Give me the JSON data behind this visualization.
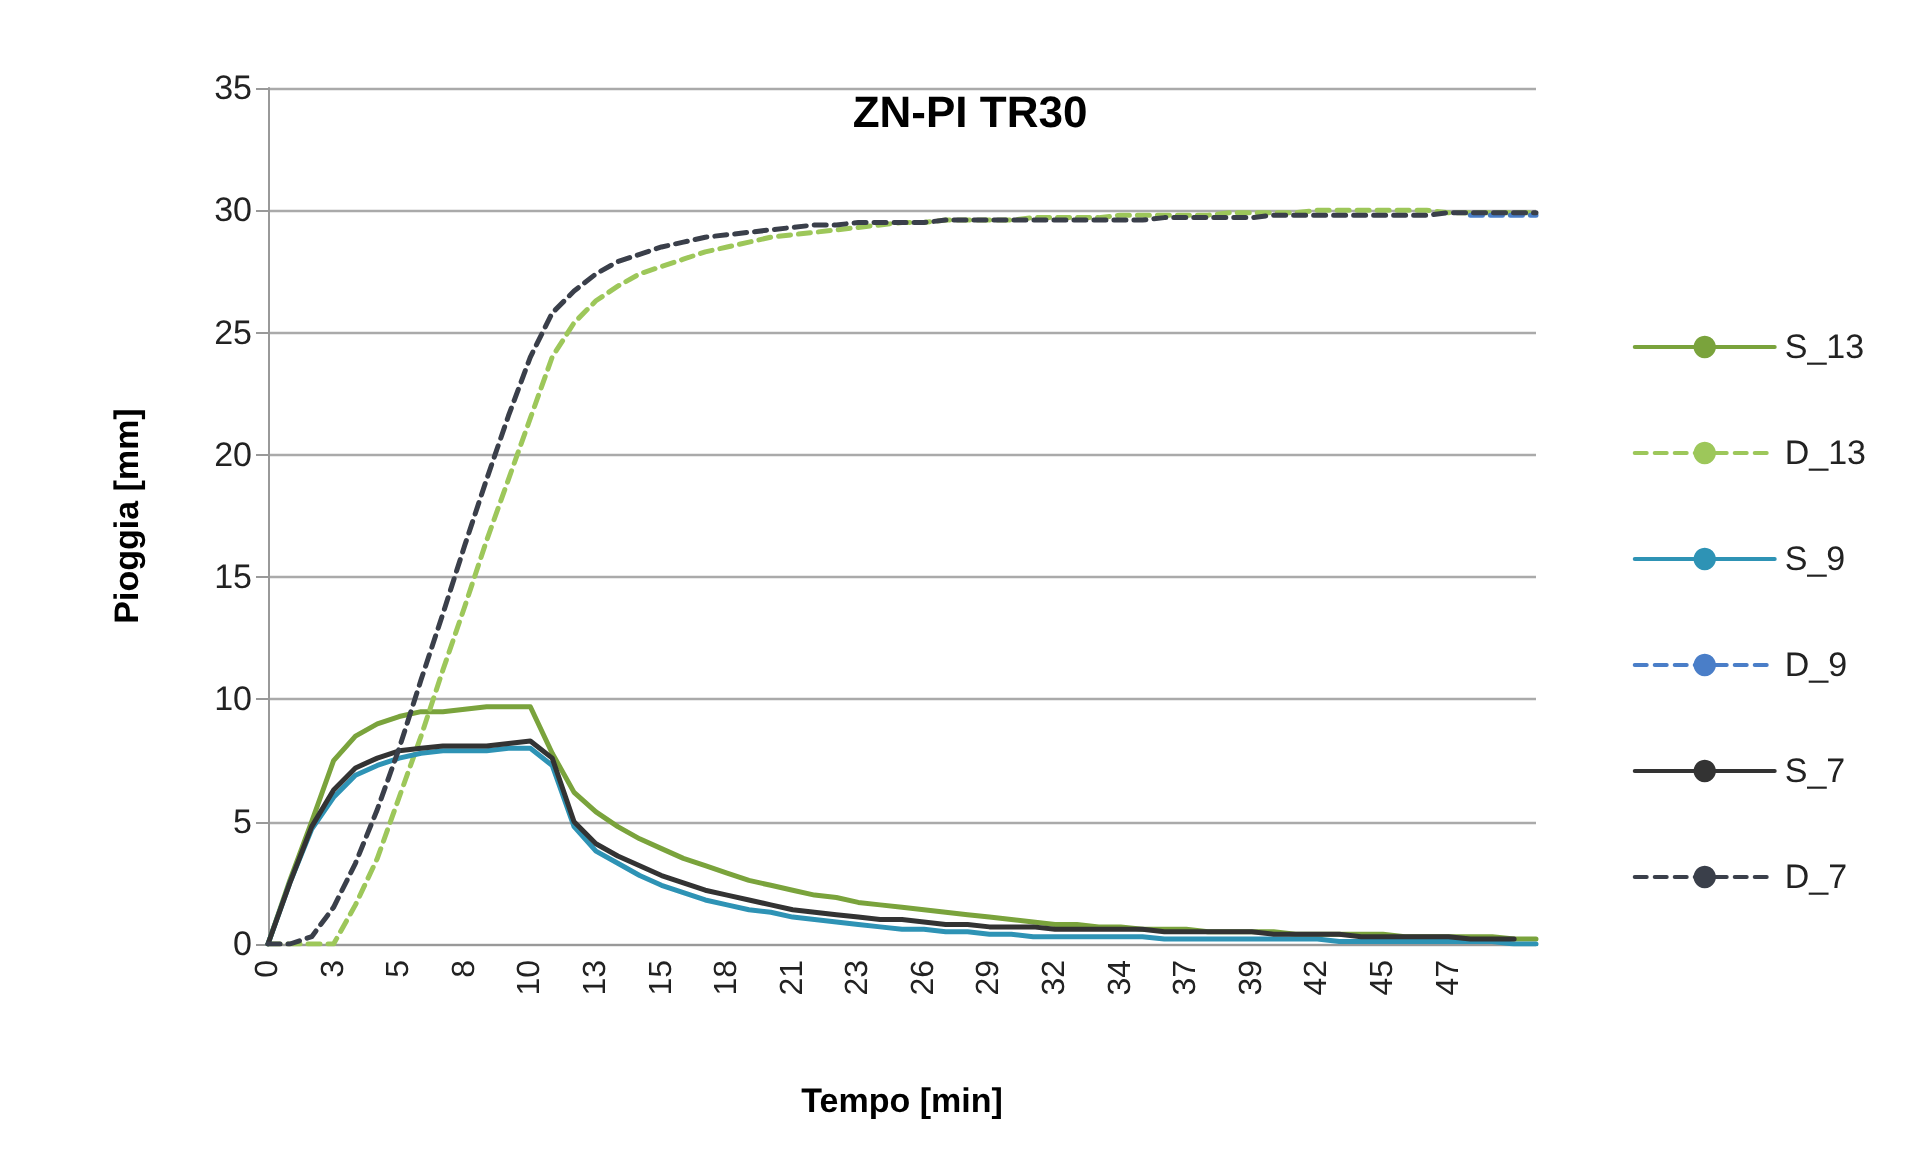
{
  "chart_data": {
    "type": "line",
    "title": "ZN-PI TR30",
    "xlabel": "Tempo [min]",
    "ylabel": "Pioggia [mm]",
    "categories": [
      "0",
      null,
      null,
      "3",
      null,
      null,
      "5",
      null,
      null,
      "8",
      null,
      null,
      "10",
      null,
      null,
      "13",
      null,
      null,
      "15",
      null,
      null,
      "18",
      null,
      null,
      "21",
      null,
      null,
      "23",
      null,
      null,
      "26",
      null,
      null,
      "29",
      null,
      null,
      "32",
      null,
      null,
      "34",
      null,
      null,
      "37",
      null,
      null,
      "39",
      null,
      null,
      "42",
      null,
      null,
      "45",
      null,
      null,
      "47",
      null,
      null,
      null,
      null
    ],
    "series": [
      {
        "name": "S_13",
        "color": "#7aa33c",
        "line_style": "solid",
        "values": [
          0,
          2.6,
          5.0,
          7.5,
          8.5,
          9.0,
          9.3,
          9.5,
          9.5,
          9.6,
          9.7,
          9.7,
          9.7,
          7.8,
          6.2,
          5.4,
          4.8,
          4.3,
          3.9,
          3.5,
          3.2,
          2.9,
          2.6,
          2.4,
          2.2,
          2.0,
          1.9,
          1.7,
          1.6,
          1.5,
          1.4,
          1.3,
          1.2,
          1.1,
          1.0,
          0.9,
          0.8,
          0.8,
          0.7,
          0.7,
          0.6,
          0.6,
          0.6,
          0.5,
          0.5,
          0.5,
          0.5,
          0.4,
          0.4,
          0.4,
          0.4,
          0.4,
          0.3,
          0.3,
          0.3,
          0.3,
          0.3,
          0.2,
          0.2
        ]
      },
      {
        "name": "D_13",
        "color": "#9dc75a",
        "line_style": "dashed",
        "values": [
          0,
          0,
          0,
          0,
          1.6,
          3.5,
          6.0,
          8.5,
          11.2,
          13.8,
          16.5,
          19.0,
          21.5,
          24.0,
          25.4,
          26.3,
          26.9,
          27.4,
          27.7,
          28.0,
          28.3,
          28.5,
          28.7,
          28.9,
          29.0,
          29.1,
          29.2,
          29.3,
          29.4,
          29.5,
          29.5,
          29.6,
          29.6,
          29.6,
          29.6,
          29.7,
          29.7,
          29.7,
          29.7,
          29.8,
          29.8,
          29.8,
          29.8,
          29.8,
          29.9,
          29.9,
          29.9,
          29.9,
          30.0,
          30.0,
          30.0,
          30.0,
          30.0,
          30.0,
          29.9,
          29.9,
          29.9,
          29.9,
          29.9
        ]
      },
      {
        "name": "S_9",
        "color": "#2e93b5",
        "line_style": "solid",
        "values": [
          0,
          2.5,
          4.7,
          6.0,
          6.9,
          7.3,
          7.6,
          7.8,
          7.9,
          7.9,
          7.9,
          8.0,
          8.0,
          7.3,
          4.8,
          3.8,
          3.3,
          2.8,
          2.4,
          2.1,
          1.8,
          1.6,
          1.4,
          1.3,
          1.1,
          1.0,
          0.9,
          0.8,
          0.7,
          0.6,
          0.6,
          0.5,
          0.5,
          0.4,
          0.4,
          0.3,
          0.3,
          0.3,
          0.3,
          0.3,
          0.3,
          0.2,
          0.2,
          0.2,
          0.2,
          0.2,
          0.2,
          0.2,
          0.2,
          0.1,
          0.1,
          0.1,
          0.1,
          0.1,
          0.1,
          0.1,
          0.1,
          0,
          0
        ]
      },
      {
        "name": "D_9",
        "color": "#4a7ec8",
        "line_style": "dashed",
        "values": [
          null,
          null,
          null,
          null,
          null,
          null,
          null,
          null,
          null,
          null,
          null,
          null,
          null,
          null,
          null,
          null,
          null,
          null,
          null,
          null,
          null,
          null,
          null,
          null,
          null,
          null,
          null,
          null,
          null,
          null,
          null,
          null,
          null,
          null,
          null,
          null,
          null,
          null,
          null,
          null,
          null,
          null,
          null,
          null,
          null,
          null,
          null,
          null,
          null,
          null,
          null,
          null,
          null,
          null,
          null,
          29.8,
          29.8,
          29.8,
          29.8
        ]
      },
      {
        "name": "S_7",
        "color": "#333333",
        "line_style": "solid",
        "values": [
          0,
          2.5,
          4.8,
          6.3,
          7.2,
          7.6,
          7.9,
          8.0,
          8.1,
          8.1,
          8.1,
          8.2,
          8.3,
          7.6,
          5.0,
          4.1,
          3.6,
          3.2,
          2.8,
          2.5,
          2.2,
          2.0,
          1.8,
          1.6,
          1.4,
          1.3,
          1.2,
          1.1,
          1.0,
          1.0,
          0.9,
          0.8,
          0.8,
          0.7,
          0.7,
          0.7,
          0.6,
          0.6,
          0.6,
          0.6,
          0.6,
          0.5,
          0.5,
          0.5,
          0.5,
          0.5,
          0.4,
          0.4,
          0.4,
          0.4,
          0.3,
          0.3,
          0.3,
          0.3,
          0.3,
          0.2,
          0.2,
          0.2,
          null
        ]
      },
      {
        "name": "D_7",
        "color": "#3a3f4a",
        "line_style": "dashed",
        "values": [
          0,
          0,
          0.3,
          1.5,
          3.3,
          5.5,
          8.0,
          10.8,
          13.5,
          16.3,
          19.0,
          21.6,
          24.0,
          25.8,
          26.7,
          27.4,
          27.9,
          28.2,
          28.5,
          28.7,
          28.9,
          29.0,
          29.1,
          29.2,
          29.3,
          29.4,
          29.4,
          29.5,
          29.5,
          29.5,
          29.5,
          29.6,
          29.6,
          29.6,
          29.6,
          29.6,
          29.6,
          29.6,
          29.6,
          29.6,
          29.6,
          29.7,
          29.7,
          29.7,
          29.7,
          29.7,
          29.8,
          29.8,
          29.8,
          29.8,
          29.8,
          29.8,
          29.8,
          29.8,
          29.9,
          29.9,
          29.9,
          29.9,
          29.9
        ]
      }
    ],
    "ylim": [
      0,
      35
    ],
    "yticks": [
      0,
      5,
      10,
      15,
      20,
      25,
      30,
      35
    ],
    "grid": "y",
    "legend": "right",
    "marker": "none"
  }
}
